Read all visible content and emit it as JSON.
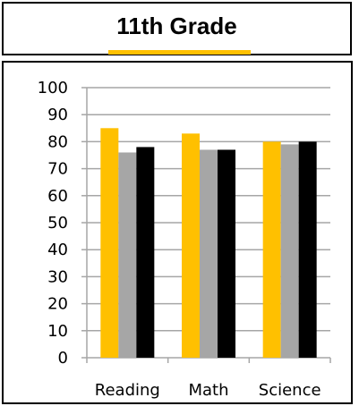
{
  "title": "11th Grade",
  "colors": {
    "accent": "#FFC000",
    "gray": "#A6A6A6",
    "black": "#000000",
    "grid": "#A6A6A6"
  },
  "chart_data": {
    "type": "bar",
    "categories": [
      "Reading",
      "Math",
      "Science"
    ],
    "series": [
      {
        "values": [
          85,
          83,
          80
        ],
        "color": "#FFC000"
      },
      {
        "values": [
          76,
          77,
          79
        ],
        "color": "#A6A6A6"
      },
      {
        "values": [
          78,
          77,
          80
        ],
        "color": "#000000"
      }
    ],
    "ylim": [
      0,
      100
    ],
    "yticks": [
      0,
      10,
      20,
      30,
      40,
      50,
      60,
      70,
      80,
      90,
      100
    ],
    "grid": true,
    "legend": "none"
  }
}
